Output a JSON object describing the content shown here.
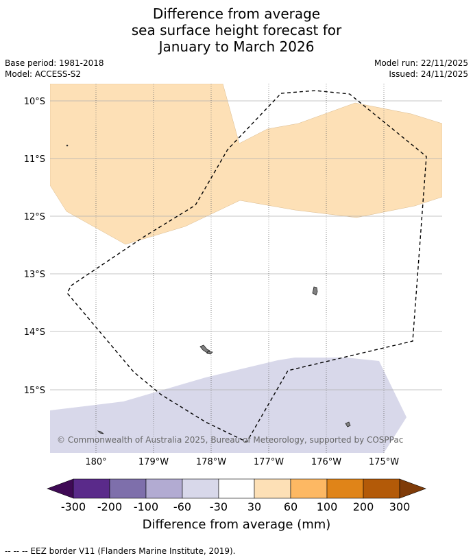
{
  "title": {
    "line1": "Difference from average",
    "line2": "sea surface height forecast for",
    "line3": "January to March 2026"
  },
  "meta": {
    "base_period": "Base period: 1981-2018",
    "model": "Model: ACCESS-S2",
    "model_run": "Model run: 22/11/2025",
    "issued": "Issued: 24/11/2025"
  },
  "map": {
    "lat_labels": [
      "10°S",
      "11°S",
      "12°S",
      "13°S",
      "14°S",
      "15°S"
    ],
    "lon_labels": [
      "180°",
      "179°W",
      "178°W",
      "177°W",
      "176°W",
      "175°W"
    ],
    "copyright": "© Commonwealth of Australia 2025, Bureau of Meteorology, supported by COSPPac",
    "colors": {
      "positive_30_60": "#fde0b6",
      "negative_60_30": "#d8d8ea",
      "land": "#808080",
      "grid": "#b0b0b0"
    }
  },
  "colorbar": {
    "ticks": [
      "-300",
      "-200",
      "-100",
      "-60",
      "-30",
      "30",
      "60",
      "100",
      "200",
      "300"
    ],
    "label": "Difference from average (mm)",
    "colors": [
      "#3f0a55",
      "#5a2a8a",
      "#7e6fab",
      "#b2abd2",
      "#d8d8ea",
      "#ffffff",
      "#fde0b6",
      "#fdb863",
      "#e08418",
      "#b35a08",
      "#7f3b08"
    ]
  },
  "footer": {
    "legend_text": "-- -- -- EEZ border V11 (Flanders Marine Institute, 2019)."
  }
}
